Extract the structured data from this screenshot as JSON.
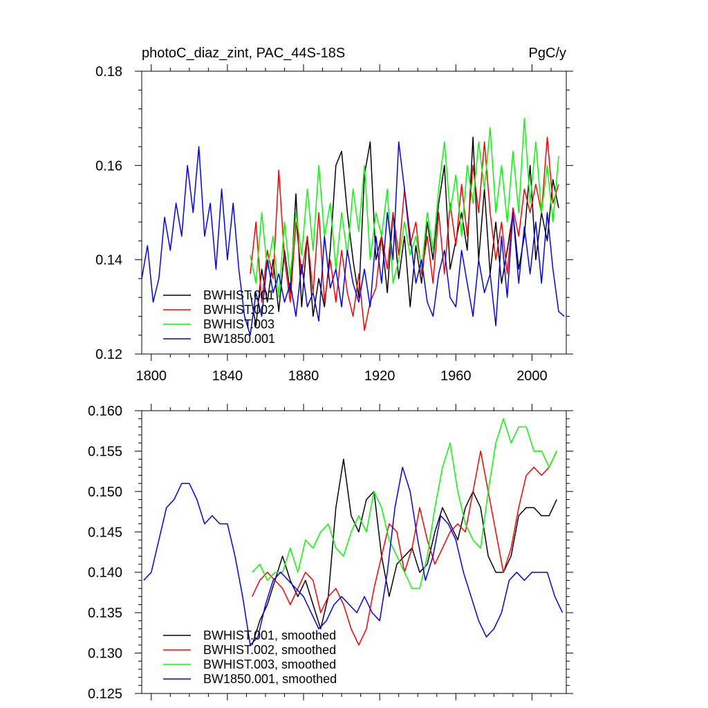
{
  "chart_data": [
    {
      "type": "line",
      "title_left": "photoC_diaz_zint, PAC_44S-18S",
      "title_right": "PgC/y",
      "xlabel": "",
      "ylabel": "",
      "xlim": [
        1795,
        2018
      ],
      "ylim": [
        0.12,
        0.18
      ],
      "xticks": [
        1800,
        1840,
        1880,
        1920,
        1960,
        2000
      ],
      "yticks": [
        0.12,
        0.14,
        0.16,
        0.18
      ],
      "ytick_labels": [
        "0.12",
        "0.14",
        "0.16",
        "0.18"
      ],
      "legend_position": "bottom-left",
      "series": [
        {
          "name": "BWHIST.001",
          "color": "#000000",
          "x": [
            1852,
            1855,
            1858,
            1861,
            1864,
            1867,
            1870,
            1873,
            1876,
            1879,
            1882,
            1885,
            1888,
            1891,
            1894,
            1897,
            1900,
            1903,
            1906,
            1909,
            1912,
            1915,
            1918,
            1921,
            1924,
            1927,
            1930,
            1933,
            1936,
            1939,
            1942,
            1945,
            1948,
            1951,
            1954,
            1957,
            1960,
            1963,
            1966,
            1969,
            1972,
            1975,
            1978,
            1981,
            1984,
            1987,
            1990,
            1993,
            1996,
            1999,
            2002,
            2005,
            2008,
            2011,
            2014
          ],
          "y": [
            0.133,
            0.126,
            0.138,
            0.131,
            0.14,
            0.129,
            0.142,
            0.133,
            0.154,
            0.13,
            0.145,
            0.128,
            0.136,
            0.13,
            0.142,
            0.16,
            0.163,
            0.15,
            0.14,
            0.132,
            0.158,
            0.165,
            0.14,
            0.145,
            0.133,
            0.15,
            0.136,
            0.145,
            0.13,
            0.143,
            0.135,
            0.148,
            0.14,
            0.152,
            0.16,
            0.138,
            0.144,
            0.15,
            0.142,
            0.166,
            0.14,
            0.155,
            0.137,
            0.148,
            0.135,
            0.142,
            0.15,
            0.138,
            0.145,
            0.16,
            0.14,
            0.15,
            0.144,
            0.157,
            0.151
          ]
        },
        {
          "name": "BWHIST.002",
          "color": "#ff0000",
          "x": [
            1852,
            1855,
            1858,
            1861,
            1864,
            1867,
            1870,
            1873,
            1876,
            1879,
            1882,
            1885,
            1888,
            1891,
            1894,
            1897,
            1900,
            1903,
            1906,
            1909,
            1912,
            1915,
            1918,
            1921,
            1924,
            1927,
            1930,
            1933,
            1936,
            1939,
            1942,
            1945,
            1948,
            1951,
            1954,
            1957,
            1960,
            1963,
            1966,
            1969,
            1972,
            1975,
            1978,
            1981,
            1984,
            1987,
            1990,
            1993,
            1996,
            1999,
            2002,
            2005,
            2008,
            2011,
            2014
          ],
          "y": [
            0.137,
            0.148,
            0.131,
            0.142,
            0.136,
            0.159,
            0.14,
            0.131,
            0.148,
            0.137,
            0.145,
            0.133,
            0.15,
            0.131,
            0.14,
            0.131,
            0.142,
            0.133,
            0.128,
            0.137,
            0.125,
            0.131,
            0.134,
            0.145,
            0.138,
            0.15,
            0.141,
            0.155,
            0.143,
            0.148,
            0.137,
            0.145,
            0.135,
            0.15,
            0.137,
            0.152,
            0.143,
            0.156,
            0.145,
            0.16,
            0.15,
            0.165,
            0.15,
            0.14,
            0.148,
            0.137,
            0.151,
            0.145,
            0.155,
            0.15,
            0.156,
            0.15,
            0.166,
            0.152,
            0.156
          ]
        },
        {
          "name": "BWHIST.003",
          "color": "#00ff00",
          "x": [
            1852,
            1855,
            1858,
            1861,
            1864,
            1867,
            1870,
            1873,
            1876,
            1879,
            1882,
            1885,
            1888,
            1891,
            1894,
            1897,
            1900,
            1903,
            1906,
            1909,
            1912,
            1915,
            1918,
            1921,
            1924,
            1927,
            1930,
            1933,
            1936,
            1939,
            1942,
            1945,
            1948,
            1951,
            1954,
            1957,
            1960,
            1963,
            1966,
            1969,
            1972,
            1975,
            1978,
            1981,
            1984,
            1987,
            1990,
            1993,
            1996,
            1999,
            2002,
            2005,
            2008,
            2011,
            2014
          ],
          "y": [
            0.141,
            0.135,
            0.15,
            0.138,
            0.145,
            0.132,
            0.148,
            0.136,
            0.15,
            0.141,
            0.155,
            0.142,
            0.16,
            0.145,
            0.152,
            0.138,
            0.15,
            0.141,
            0.155,
            0.146,
            0.16,
            0.14,
            0.15,
            0.145,
            0.155,
            0.135,
            0.14,
            0.148,
            0.141,
            0.145,
            0.138,
            0.15,
            0.142,
            0.155,
            0.165,
            0.15,
            0.158,
            0.145,
            0.16,
            0.152,
            0.165,
            0.155,
            0.168,
            0.15,
            0.16,
            0.148,
            0.163,
            0.15,
            0.17,
            0.152,
            0.165,
            0.15,
            0.16,
            0.148,
            0.162
          ]
        },
        {
          "name": "BW1850.001",
          "color": "#0000ff",
          "x": [
            1795,
            1798,
            1801,
            1804,
            1807,
            1810,
            1813,
            1816,
            1819,
            1822,
            1825,
            1828,
            1831,
            1834,
            1837,
            1840,
            1843,
            1846,
            1849,
            1852,
            1855,
            1858,
            1861,
            1864,
            1867,
            1870,
            1873,
            1876,
            1879,
            1882,
            1885,
            1888,
            1891,
            1894,
            1897,
            1900,
            1903,
            1906,
            1909,
            1912,
            1915,
            1918,
            1921,
            1924,
            1927,
            1930,
            1933,
            1936,
            1939,
            1942,
            1945,
            1948,
            1951,
            1954,
            1957,
            1960,
            1963,
            1966,
            1969,
            1972,
            1975,
            1978,
            1981,
            1984,
            1987,
            1990,
            1993,
            1996,
            1999,
            2002,
            2005,
            2008,
            2011,
            2014,
            2017
          ],
          "y": [
            0.136,
            0.143,
            0.131,
            0.136,
            0.149,
            0.142,
            0.152,
            0.145,
            0.16,
            0.15,
            0.164,
            0.145,
            0.152,
            0.138,
            0.155,
            0.14,
            0.152,
            0.138,
            0.128,
            0.124,
            0.133,
            0.128,
            0.14,
            0.133,
            0.137,
            0.131,
            0.135,
            0.128,
            0.139,
            0.13,
            0.133,
            0.127,
            0.145,
            0.134,
            0.138,
            0.13,
            0.142,
            0.135,
            0.131,
            0.138,
            0.13,
            0.145,
            0.135,
            0.15,
            0.14,
            0.165,
            0.155,
            0.145,
            0.135,
            0.14,
            0.131,
            0.128,
            0.137,
            0.142,
            0.132,
            0.13,
            0.142,
            0.135,
            0.128,
            0.14,
            0.133,
            0.137,
            0.126,
            0.145,
            0.132,
            0.15,
            0.135,
            0.147,
            0.137,
            0.148,
            0.135,
            0.15,
            0.138,
            0.129,
            0.128
          ]
        }
      ]
    },
    {
      "type": "line",
      "xlabel": "",
      "ylabel": "",
      "xlim": [
        1795,
        2018
      ],
      "ylim": [
        0.125,
        0.16
      ],
      "xticks": [
        1800,
        1840,
        1880,
        1920,
        1960,
        2000
      ],
      "yticks": [
        0.125,
        0.13,
        0.135,
        0.14,
        0.145,
        0.15,
        0.155,
        0.16
      ],
      "ytick_labels": [
        "0.125",
        "0.130",
        "0.135",
        "0.140",
        "0.145",
        "0.150",
        "0.155",
        "0.160"
      ],
      "legend_position": "bottom-left",
      "series": [
        {
          "name": "BWHIST.001, smoothed",
          "color": "#000000",
          "x": [
            1853,
            1857,
            1861,
            1865,
            1869,
            1873,
            1877,
            1881,
            1885,
            1889,
            1893,
            1897,
            1901,
            1905,
            1909,
            1913,
            1917,
            1921,
            1925,
            1929,
            1933,
            1937,
            1941,
            1945,
            1949,
            1953,
            1957,
            1961,
            1965,
            1969,
            1973,
            1977,
            1981,
            1985,
            1989,
            1993,
            1997,
            2001,
            2005,
            2009,
            2013
          ],
          "y": [
            0.131,
            0.134,
            0.136,
            0.139,
            0.142,
            0.139,
            0.137,
            0.139,
            0.136,
            0.133,
            0.137,
            0.148,
            0.154,
            0.147,
            0.145,
            0.149,
            0.15,
            0.142,
            0.137,
            0.141,
            0.142,
            0.143,
            0.14,
            0.141,
            0.145,
            0.148,
            0.146,
            0.144,
            0.148,
            0.15,
            0.148,
            0.142,
            0.14,
            0.14,
            0.142,
            0.147,
            0.148,
            0.148,
            0.147,
            0.147,
            0.149
          ]
        },
        {
          "name": "BWHIST.002, smoothed",
          "color": "#ff0000",
          "x": [
            1853,
            1857,
            1861,
            1865,
            1869,
            1873,
            1877,
            1881,
            1885,
            1889,
            1893,
            1897,
            1901,
            1905,
            1909,
            1913,
            1917,
            1921,
            1925,
            1929,
            1933,
            1937,
            1941,
            1945,
            1949,
            1953,
            1957,
            1961,
            1965,
            1969,
            1973,
            1977,
            1981,
            1985,
            1989,
            1993,
            1997,
            2001,
            2005,
            2009,
            2013
          ],
          "y": [
            0.137,
            0.139,
            0.14,
            0.139,
            0.138,
            0.136,
            0.138,
            0.14,
            0.139,
            0.135,
            0.137,
            0.138,
            0.136,
            0.133,
            0.131,
            0.133,
            0.138,
            0.142,
            0.146,
            0.145,
            0.14,
            0.143,
            0.148,
            0.144,
            0.141,
            0.143,
            0.145,
            0.146,
            0.145,
            0.15,
            0.155,
            0.15,
            0.145,
            0.14,
            0.143,
            0.148,
            0.152,
            0.153,
            0.152,
            0.153,
            0.155
          ]
        },
        {
          "name": "BWHIST.003, smoothed",
          "color": "#00ff00",
          "x": [
            1853,
            1857,
            1861,
            1865,
            1869,
            1873,
            1877,
            1881,
            1885,
            1889,
            1893,
            1897,
            1901,
            1905,
            1909,
            1913,
            1917,
            1921,
            1925,
            1929,
            1933,
            1937,
            1941,
            1945,
            1949,
            1953,
            1957,
            1961,
            1965,
            1969,
            1973,
            1977,
            1981,
            1985,
            1989,
            1993,
            1997,
            2001,
            2005,
            2009,
            2013
          ],
          "y": [
            0.14,
            0.141,
            0.139,
            0.14,
            0.14,
            0.143,
            0.14,
            0.144,
            0.143,
            0.145,
            0.146,
            0.143,
            0.142,
            0.145,
            0.147,
            0.145,
            0.15,
            0.148,
            0.144,
            0.142,
            0.14,
            0.138,
            0.138,
            0.142,
            0.148,
            0.153,
            0.156,
            0.15,
            0.146,
            0.144,
            0.143,
            0.15,
            0.156,
            0.159,
            0.156,
            0.158,
            0.158,
            0.155,
            0.155,
            0.153,
            0.155
          ]
        },
        {
          "name": "BW1850.001, smoothed",
          "color": "#0000ff",
          "x": [
            1796,
            1800,
            1804,
            1808,
            1812,
            1816,
            1820,
            1824,
            1828,
            1832,
            1836,
            1840,
            1844,
            1848,
            1852,
            1856,
            1860,
            1864,
            1868,
            1872,
            1876,
            1880,
            1884,
            1888,
            1892,
            1896,
            1900,
            1904,
            1908,
            1912,
            1916,
            1920,
            1924,
            1928,
            1932,
            1936,
            1940,
            1944,
            1948,
            1952,
            1956,
            1960,
            1964,
            1968,
            1972,
            1976,
            1980,
            1984,
            1988,
            1992,
            1996,
            2000,
            2004,
            2008,
            2012,
            2016
          ],
          "y": [
            0.139,
            0.14,
            0.144,
            0.148,
            0.149,
            0.151,
            0.151,
            0.149,
            0.146,
            0.147,
            0.146,
            0.146,
            0.142,
            0.137,
            0.131,
            0.132,
            0.136,
            0.139,
            0.14,
            0.139,
            0.138,
            0.137,
            0.135,
            0.133,
            0.134,
            0.136,
            0.137,
            0.136,
            0.135,
            0.137,
            0.135,
            0.134,
            0.14,
            0.148,
            0.153,
            0.15,
            0.144,
            0.139,
            0.142,
            0.147,
            0.146,
            0.144,
            0.14,
            0.137,
            0.134,
            0.132,
            0.133,
            0.135,
            0.139,
            0.14,
            0.139,
            0.14,
            0.14,
            0.14,
            0.137,
            0.135
          ]
        }
      ]
    }
  ]
}
